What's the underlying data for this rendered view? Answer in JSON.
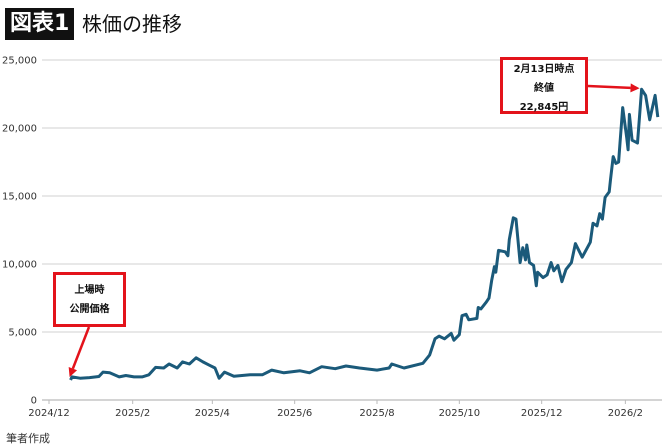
{
  "header": {
    "figure_label": "図表1",
    "title": "株価の推移"
  },
  "source": "筆者作成",
  "annotations": {
    "ipo": {
      "line1": "上場時",
      "line2": "公開価格"
    },
    "latest": {
      "line1": "2月13日時点",
      "line2": "終値",
      "line3": "22,845円"
    }
  },
  "colors": {
    "line": "#1b5a7a",
    "annotation": "#e3131b",
    "grid": "#d9d9d9"
  },
  "chart_data": {
    "type": "line",
    "title": "株価の推移",
    "xlabel": "",
    "ylabel": "",
    "xlim": [
      "2024-12-01",
      "2026-02-28"
    ],
    "ylim": [
      0,
      25000
    ],
    "grid": true,
    "x_ticks": [
      "2024/12",
      "2025/2",
      "2025/4",
      "2025/6",
      "2025/8",
      "2025/10",
      "2025/12",
      "2026/2"
    ],
    "x_tick_dates": [
      "2024-12-01",
      "2025-02-01",
      "2025-04-01",
      "2025-06-01",
      "2025-08-01",
      "2025-10-01",
      "2025-12-01",
      "2026-02-01"
    ],
    "y_ticks": [
      0,
      5000,
      10000,
      15000,
      20000,
      25000
    ],
    "y_tick_labels": [
      "0",
      "5,000",
      "10,000",
      "15,000",
      "20,000",
      "25,000"
    ],
    "series": [
      {
        "points": [
          [
            "2024-12-17",
            1470
          ],
          [
            "2024-12-18",
            1700
          ],
          [
            "2024-12-24",
            1600
          ],
          [
            "2024-12-31",
            1650
          ],
          [
            "2025-01-07",
            1730
          ],
          [
            "2025-01-10",
            2050
          ],
          [
            "2025-01-15",
            2000
          ],
          [
            "2025-01-22",
            1700
          ],
          [
            "2025-01-27",
            1800
          ],
          [
            "2025-02-02",
            1700
          ],
          [
            "2025-02-08",
            1700
          ],
          [
            "2025-02-13",
            1850
          ],
          [
            "2025-02-18",
            2400
          ],
          [
            "2025-02-24",
            2350
          ],
          [
            "2025-02-28",
            2650
          ],
          [
            "2025-03-06",
            2350
          ],
          [
            "2025-03-10",
            2800
          ],
          [
            "2025-03-15",
            2650
          ],
          [
            "2025-03-20",
            3100
          ],
          [
            "2025-03-25",
            2800
          ],
          [
            "2025-03-30",
            2550
          ],
          [
            "2025-04-03",
            2350
          ],
          [
            "2025-04-06",
            1600
          ],
          [
            "2025-04-10",
            2050
          ],
          [
            "2025-04-17",
            1750
          ],
          [
            "2025-04-29",
            1850
          ],
          [
            "2025-05-08",
            1850
          ],
          [
            "2025-05-15",
            2200
          ],
          [
            "2025-05-24",
            2000
          ],
          [
            "2025-06-05",
            2150
          ],
          [
            "2025-06-12",
            2000
          ],
          [
            "2025-06-21",
            2450
          ],
          [
            "2025-07-01",
            2300
          ],
          [
            "2025-07-09",
            2500
          ],
          [
            "2025-07-19",
            2350
          ],
          [
            "2025-08-01",
            2200
          ],
          [
            "2025-08-10",
            2350
          ],
          [
            "2025-08-12",
            2650
          ],
          [
            "2025-08-21",
            2350
          ],
          [
            "2025-09-04",
            2700
          ],
          [
            "2025-09-09",
            3300
          ],
          [
            "2025-09-13",
            4500
          ],
          [
            "2025-09-16",
            4700
          ],
          [
            "2025-09-20",
            4500
          ],
          [
            "2025-09-25",
            4900
          ],
          [
            "2025-09-27",
            4400
          ],
          [
            "2025-10-01",
            4800
          ],
          [
            "2025-10-03",
            6200
          ],
          [
            "2025-10-06",
            6300
          ],
          [
            "2025-10-08",
            5900
          ],
          [
            "2025-10-14",
            6000
          ],
          [
            "2025-10-15",
            6800
          ],
          [
            "2025-10-17",
            6700
          ],
          [
            "2025-10-21",
            7200
          ],
          [
            "2025-10-23",
            7500
          ],
          [
            "2025-10-25",
            8800
          ],
          [
            "2025-10-27",
            9800
          ],
          [
            "2025-10-28",
            9400
          ],
          [
            "2025-10-30",
            11000
          ],
          [
            "2025-11-04",
            10900
          ],
          [
            "2025-11-06",
            10600
          ],
          [
            "2025-11-07",
            11800
          ],
          [
            "2025-11-10",
            13400
          ],
          [
            "2025-11-12",
            13300
          ],
          [
            "2025-11-15",
            10100
          ],
          [
            "2025-11-17",
            11200
          ],
          [
            "2025-11-19",
            10300
          ],
          [
            "2025-11-20",
            11400
          ],
          [
            "2025-11-22",
            10100
          ],
          [
            "2025-11-25",
            9900
          ],
          [
            "2025-11-27",
            8400
          ],
          [
            "2025-11-28",
            9400
          ],
          [
            "2025-12-02",
            9000
          ],
          [
            "2025-12-05",
            9200
          ],
          [
            "2025-12-08",
            10100
          ],
          [
            "2025-12-10",
            9500
          ],
          [
            "2025-12-13",
            9900
          ],
          [
            "2025-12-16",
            8700
          ],
          [
            "2025-12-19",
            9600
          ],
          [
            "2025-12-23",
            10100
          ],
          [
            "2025-12-26",
            11500
          ],
          [
            "2025-12-31",
            10500
          ],
          [
            "2026-01-06",
            11600
          ],
          [
            "2026-01-08",
            13000
          ],
          [
            "2026-01-11",
            12800
          ],
          [
            "2026-01-13",
            13700
          ],
          [
            "2026-01-15",
            13300
          ],
          [
            "2026-01-17",
            14900
          ],
          [
            "2026-01-20",
            15300
          ],
          [
            "2026-01-21",
            16200
          ],
          [
            "2026-01-23",
            17900
          ],
          [
            "2026-01-25",
            17400
          ],
          [
            "2026-01-27",
            17500
          ],
          [
            "2026-01-28",
            18900
          ],
          [
            "2026-01-30",
            21500
          ],
          [
            "2026-02-02",
            19300
          ],
          [
            "2026-02-03",
            18400
          ],
          [
            "2026-02-04",
            21000
          ],
          [
            "2026-02-06",
            19100
          ],
          [
            "2026-02-10",
            18900
          ],
          [
            "2026-02-13",
            22845
          ],
          [
            "2026-02-16",
            22400
          ],
          [
            "2026-02-19",
            20600
          ],
          [
            "2026-02-23",
            22400
          ],
          [
            "2026-02-25",
            20800
          ]
        ]
      }
    ]
  }
}
